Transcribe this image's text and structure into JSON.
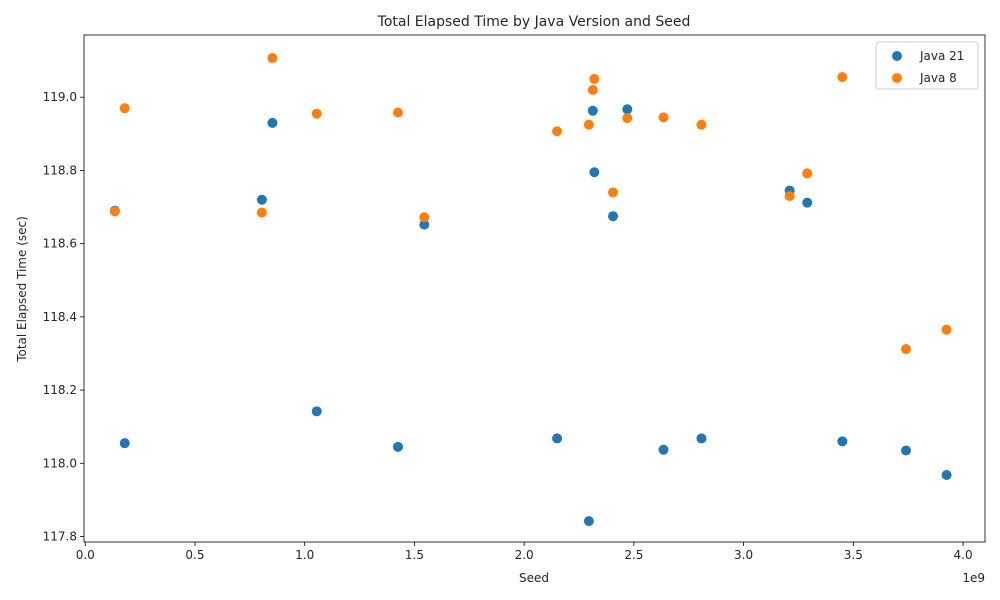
{
  "chart_data": {
    "type": "scatter",
    "title": "Total Elapsed Time by Java Version and Seed",
    "xlabel": "Seed",
    "ylabel": "Total Elapsed Time (sec)",
    "x_offset_label": "1e9",
    "xlim": [
      -0.0057,
      4.1
    ],
    "ylim": [
      117.785,
      119.17
    ],
    "x_ticks": [
      0.0,
      0.5,
      1.0,
      1.5,
      2.0,
      2.5,
      3.0,
      3.5,
      4.0
    ],
    "x_tick_labels": [
      "0.0",
      "0.5",
      "1.0",
      "1.5",
      "2.0",
      "2.5",
      "3.0",
      "3.5",
      "4.0"
    ],
    "y_ticks": [
      117.8,
      118.0,
      118.2,
      118.4,
      118.6,
      118.8,
      119.0
    ],
    "y_tick_labels": [
      "117.8",
      "118.0",
      "118.2",
      "118.4",
      "118.6",
      "118.8",
      "119.0"
    ],
    "grid": false,
    "legend_position": "top-right",
    "series": [
      {
        "name": "Java 21",
        "color": "#1f77b4",
        "points": [
          [
            0.135,
            118.69
          ],
          [
            0.18,
            118.055
          ],
          [
            0.805,
            118.72
          ],
          [
            0.853,
            118.93
          ],
          [
            1.055,
            118.142
          ],
          [
            1.425,
            118.045
          ],
          [
            1.545,
            118.652
          ],
          [
            2.15,
            118.068
          ],
          [
            2.295,
            117.842
          ],
          [
            2.313,
            118.963
          ],
          [
            2.32,
            118.795
          ],
          [
            2.405,
            118.675
          ],
          [
            2.47,
            118.967
          ],
          [
            2.635,
            118.037
          ],
          [
            2.808,
            118.068
          ],
          [
            3.21,
            118.745
          ],
          [
            3.29,
            118.712
          ],
          [
            3.45,
            118.06
          ],
          [
            3.74,
            118.035
          ],
          [
            3.925,
            117.968
          ]
        ]
      },
      {
        "name": "Java 8",
        "color": "#ff7f0e",
        "points": [
          [
            0.135,
            118.688
          ],
          [
            0.18,
            118.97
          ],
          [
            0.805,
            118.685
          ],
          [
            0.853,
            119.107
          ],
          [
            1.055,
            118.955
          ],
          [
            1.425,
            118.958
          ],
          [
            1.545,
            118.672
          ],
          [
            2.15,
            118.907
          ],
          [
            2.295,
            118.925
          ],
          [
            2.313,
            119.02
          ],
          [
            2.32,
            119.05
          ],
          [
            2.405,
            118.74
          ],
          [
            2.47,
            118.943
          ],
          [
            2.635,
            118.945
          ],
          [
            2.808,
            118.925
          ],
          [
            3.21,
            118.73
          ],
          [
            3.29,
            118.792
          ],
          [
            3.45,
            119.055
          ],
          [
            3.74,
            118.312
          ],
          [
            3.925,
            118.365
          ]
        ]
      }
    ]
  }
}
